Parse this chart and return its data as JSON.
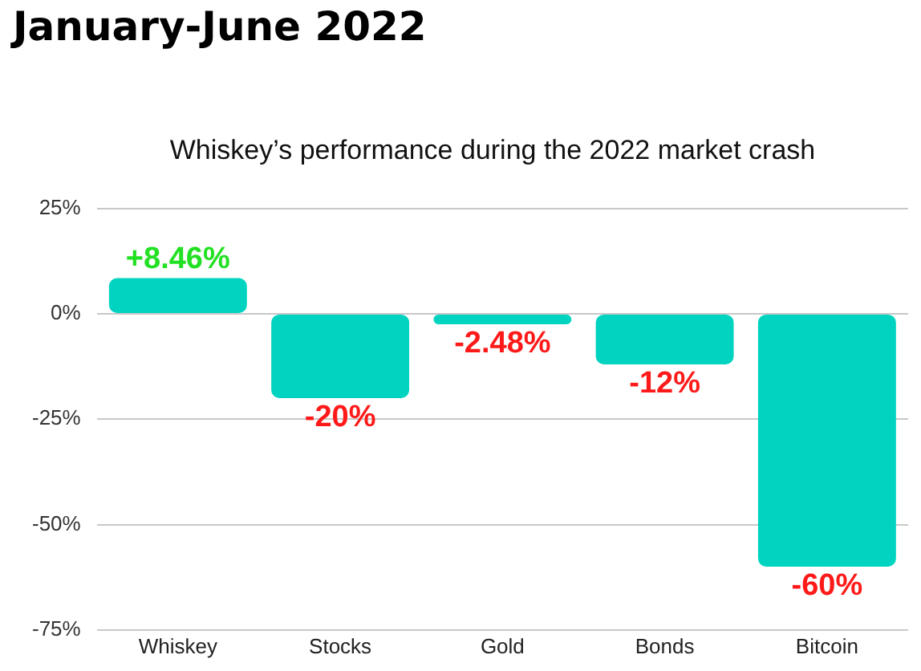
{
  "chart_data": {
    "type": "bar",
    "title": "January-June 2022",
    "subtitle": "Whiskey’s performance during the 2022 market crash",
    "categories": [
      "Whiskey",
      "Stocks",
      "Gold",
      "Bonds",
      "Bitcoin"
    ],
    "values": [
      8.46,
      -20,
      -2.48,
      -12,
      -60
    ],
    "color": "#00d4c0",
    "value_labels": [
      "+8.46%",
      "-20%",
      "-2.48%",
      "-12%",
      "-60%"
    ],
    "ylim": [
      -75,
      25
    ],
    "yticks": [
      {
        "value": 25,
        "label": "25%"
      },
      {
        "value": 0,
        "label": "0%"
      },
      {
        "value": -25,
        "label": "-25%"
      },
      {
        "value": -50,
        "label": "-50%"
      },
      {
        "value": -75,
        "label": "-75%"
      }
    ],
    "grid": "y",
    "legend": false
  }
}
